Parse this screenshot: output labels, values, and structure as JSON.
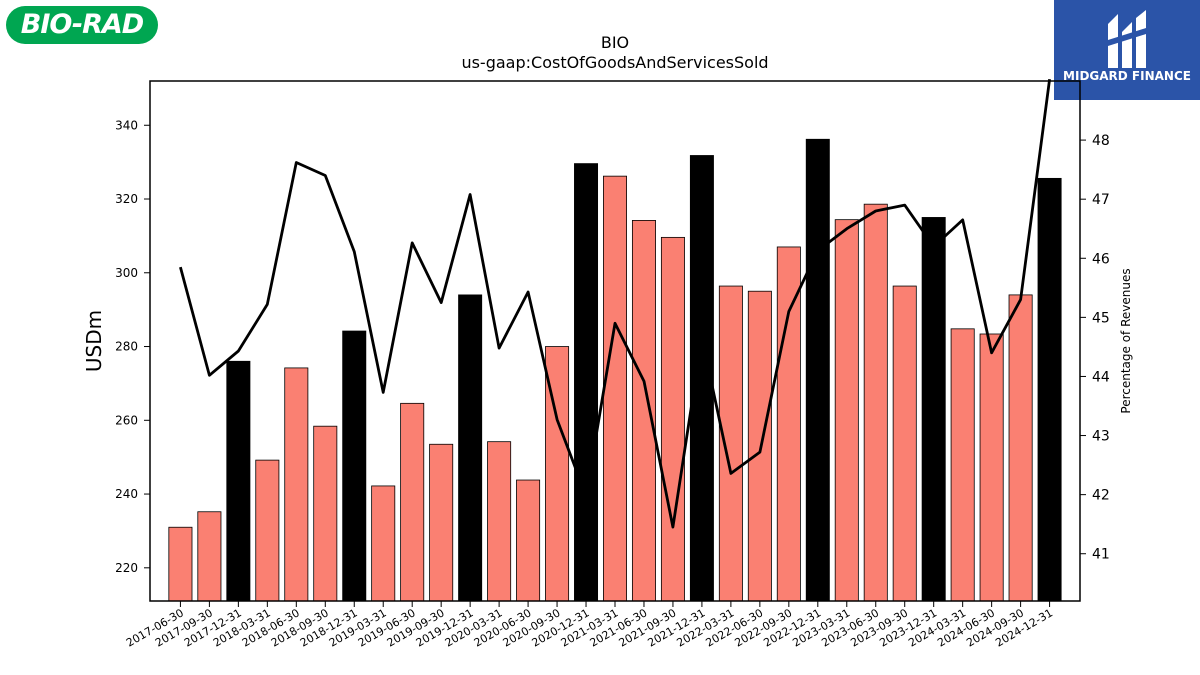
{
  "logos": {
    "left": {
      "text": "BIO-RAD",
      "color": "#00a651"
    },
    "right": {
      "text": "MIDGARD FINANCE",
      "color": "#2b54a8"
    }
  },
  "chart_data": {
    "type": "bar",
    "title": "BIO",
    "subtitle": "us-gaap:CostOfGoodsAndServicesSold",
    "ylabel": "USDm",
    "y2label": "Percentage of Revenues",
    "ylim": [
      211,
      352
    ],
    "y2lim": [
      40.2,
      49.0
    ],
    "yticks": [
      220,
      240,
      260,
      280,
      300,
      320,
      340
    ],
    "y2ticks": [
      41,
      42,
      43,
      44,
      45,
      46,
      47,
      48
    ],
    "categories": [
      "2017-06-30",
      "2017-09-30",
      "2017-12-31",
      "2018-03-31",
      "2018-06-30",
      "2018-09-30",
      "2018-12-31",
      "2019-03-31",
      "2019-06-30",
      "2019-09-30",
      "2019-12-31",
      "2020-03-31",
      "2020-06-30",
      "2020-09-30",
      "2020-12-31",
      "2021-03-31",
      "2021-06-30",
      "2021-09-30",
      "2021-12-31",
      "2022-03-31",
      "2022-06-30",
      "2022-09-30",
      "2022-12-31",
      "2023-03-31",
      "2023-06-30",
      "2023-09-30",
      "2023-12-31",
      "2024-03-31",
      "2024-06-30",
      "2024-09-30",
      "2024-12-31"
    ],
    "series": [
      {
        "kind": "bar",
        "values": [
          231.0,
          235.2,
          276.0,
          249.2,
          274.2,
          258.4,
          284.2,
          242.2,
          264.6,
          253.5,
          294.0,
          254.2,
          243.8,
          280.0,
          329.6,
          326.2,
          314.2,
          309.6,
          331.8,
          296.4,
          295.0,
          307.0,
          336.2,
          314.4,
          318.6,
          296.4,
          315.0,
          284.8,
          283.4,
          294.0,
          325.6
        ],
        "highlight": [
          false,
          false,
          true,
          false,
          false,
          false,
          true,
          false,
          false,
          false,
          true,
          false,
          false,
          false,
          true,
          false,
          false,
          false,
          true,
          false,
          false,
          false,
          true,
          false,
          false,
          false,
          true,
          false,
          false,
          false,
          true
        ]
      },
      {
        "kind": "line",
        "axis": "right",
        "values": [
          45.85,
          44.02,
          44.43,
          45.22,
          47.62,
          47.4,
          46.11,
          43.73,
          46.26,
          45.25,
          47.08,
          44.48,
          45.43,
          43.27,
          41.98,
          44.9,
          43.92,
          41.45,
          44.65,
          42.36,
          42.72,
          45.1,
          46.13,
          46.5,
          46.8,
          46.9,
          46.2,
          46.65,
          44.4,
          45.3,
          49.03
        ]
      }
    ],
    "colors": {
      "bar": "#fa8072",
      "bar_highlight": "#000000",
      "line": "#000000"
    }
  }
}
